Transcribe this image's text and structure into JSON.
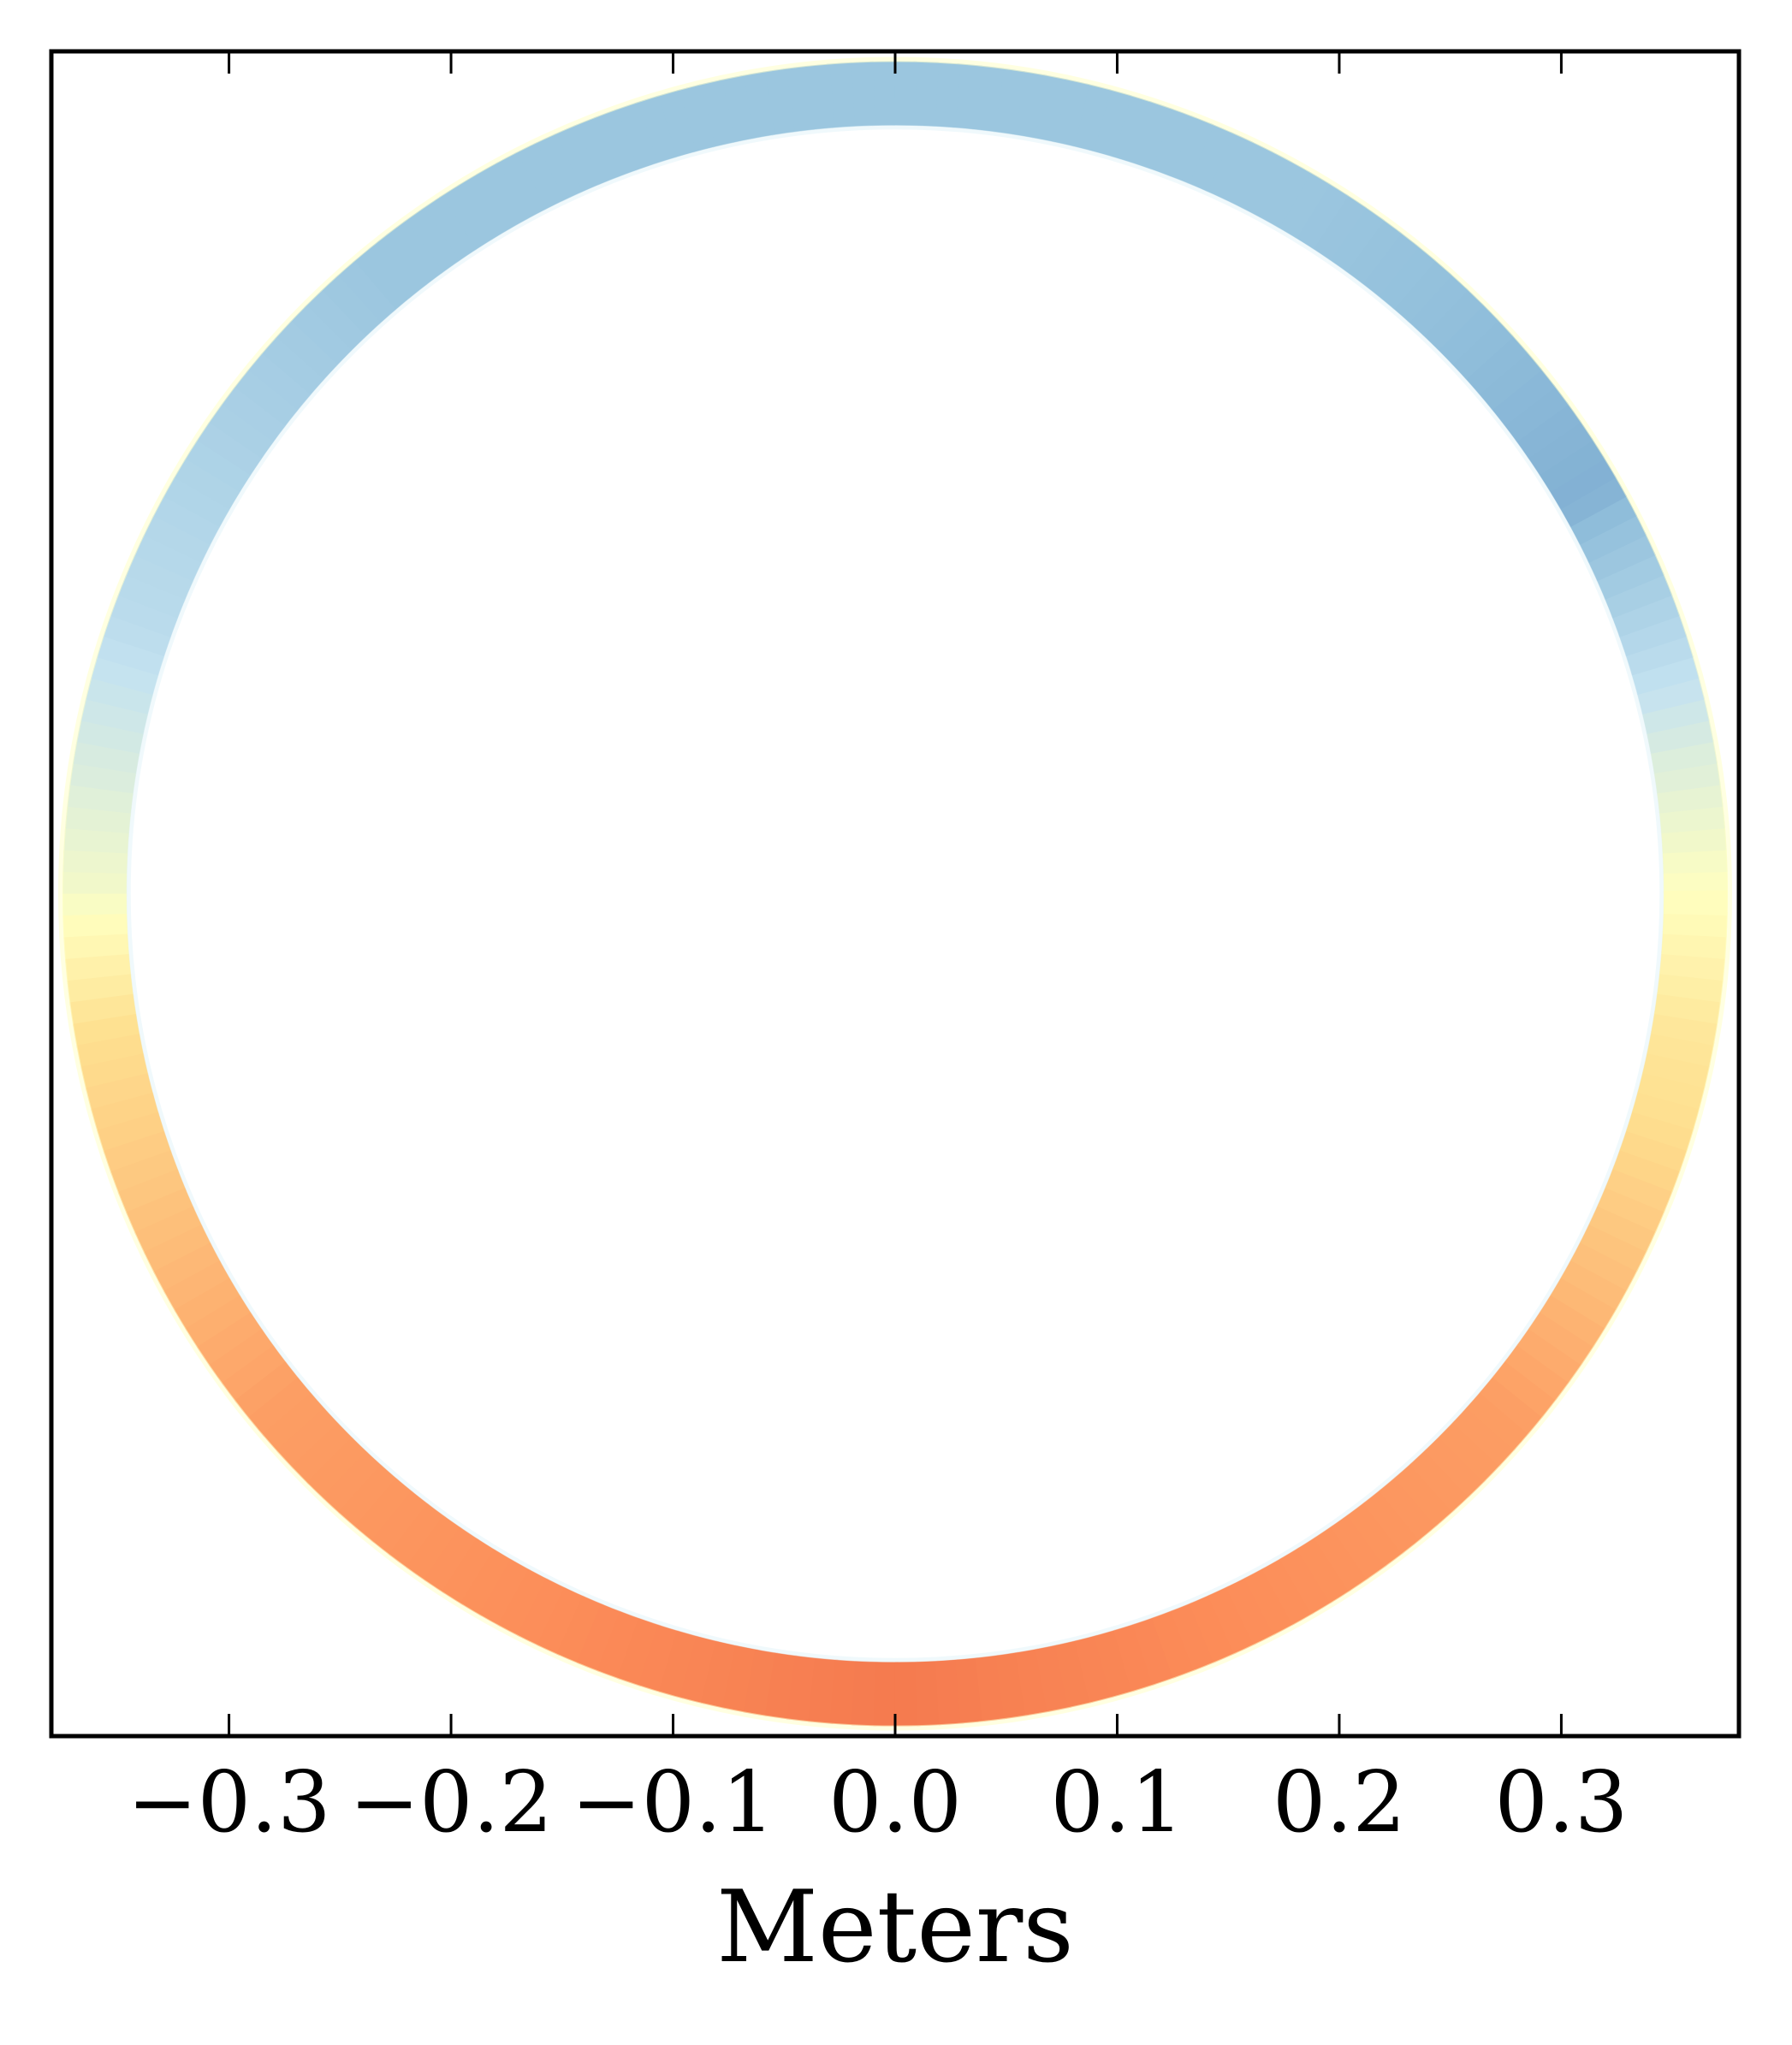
{
  "chart_data": {
    "type": "heatmap",
    "subtype": "annular ring colormap",
    "title": "",
    "xlabel": "Meters",
    "ylabel": "",
    "xlim": [
      -0.38,
      0.38
    ],
    "x_ticks": [
      -0.3,
      -0.2,
      -0.1,
      0.0,
      0.1,
      0.2,
      0.3
    ],
    "x_tick_labels": [
      "−0.3",
      "−0.2",
      "−0.1",
      "0.0",
      "0.1",
      "0.2",
      "0.3"
    ],
    "y_tick_labels_shown": false,
    "grid": false,
    "legend": "none",
    "colorbar": "none",
    "ring": {
      "center": [
        0.0,
        0.0
      ],
      "outer_radius": 0.375,
      "inner_radius": 0.346
    },
    "colormap": "RdYlBu_r",
    "field_description_by_angle_deg": [
      {
        "angle": 90,
        "value": -0.45
      },
      {
        "angle": 60,
        "value": -0.45
      },
      {
        "angle": 30,
        "value": -0.55
      },
      {
        "angle": 10,
        "value": -0.15
      },
      {
        "angle": 0,
        "value": 0.0
      },
      {
        "angle": -10,
        "value": 0.2
      },
      {
        "angle": -40,
        "value": 0.45
      },
      {
        "angle": -90,
        "value": 0.55
      },
      {
        "angle": -140,
        "value": 0.45
      },
      {
        "angle": -170,
        "value": 0.25
      },
      {
        "angle": 180,
        "value": -0.05
      },
      {
        "angle": 160,
        "value": -0.3
      },
      {
        "angle": 130,
        "value": -0.45
      },
      {
        "angle": 110,
        "value": -0.45
      }
    ],
    "colors": {
      "frame": "#000000",
      "background": "#ffffff"
    }
  }
}
